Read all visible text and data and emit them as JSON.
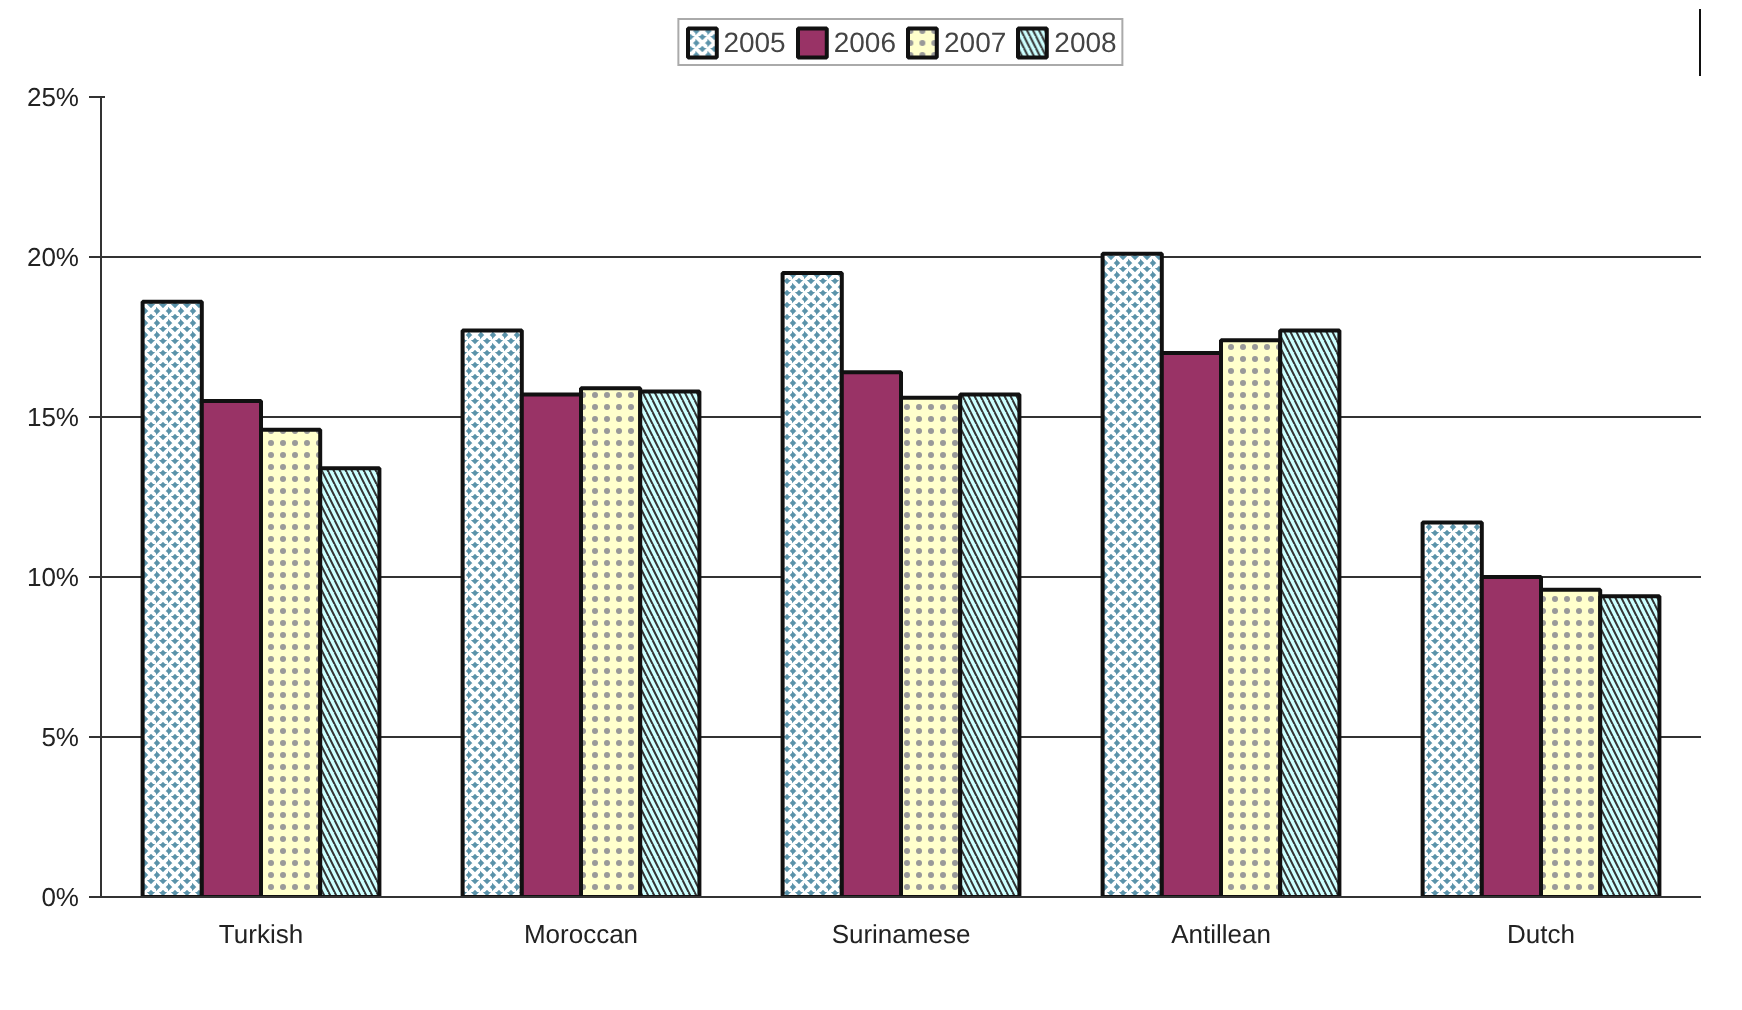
{
  "chart_data": {
    "type": "bar",
    "categories": [
      "Turkish",
      "Moroccan",
      "Surinamese",
      "Antillean",
      "Dutch"
    ],
    "series": [
      {
        "name": "2005",
        "color": "#5b93aa",
        "values": [
          18.6,
          17.7,
          19.5,
          20.1,
          11.7
        ]
      },
      {
        "name": "2006",
        "color": "#993366",
        "values": [
          15.5,
          15.7,
          16.4,
          17.0,
          10.0
        ]
      },
      {
        "name": "2007",
        "color": "#ffffcc",
        "values": [
          14.6,
          15.9,
          15.6,
          17.4,
          9.6
        ]
      },
      {
        "name": "2008",
        "color": "#ccffff",
        "values": [
          13.4,
          15.8,
          15.7,
          17.7,
          9.4
        ]
      }
    ],
    "ylim": [
      0,
      25
    ],
    "yticks": [
      {
        "value": 0,
        "label": "0%"
      },
      {
        "value": 5,
        "label": "5%"
      },
      {
        "value": 10,
        "label": "10%"
      },
      {
        "value": 15,
        "label": "15%"
      },
      {
        "value": 20,
        "label": "20%"
      },
      {
        "value": 25,
        "label": "25%"
      }
    ],
    "grid": "y",
    "legend": "top"
  }
}
